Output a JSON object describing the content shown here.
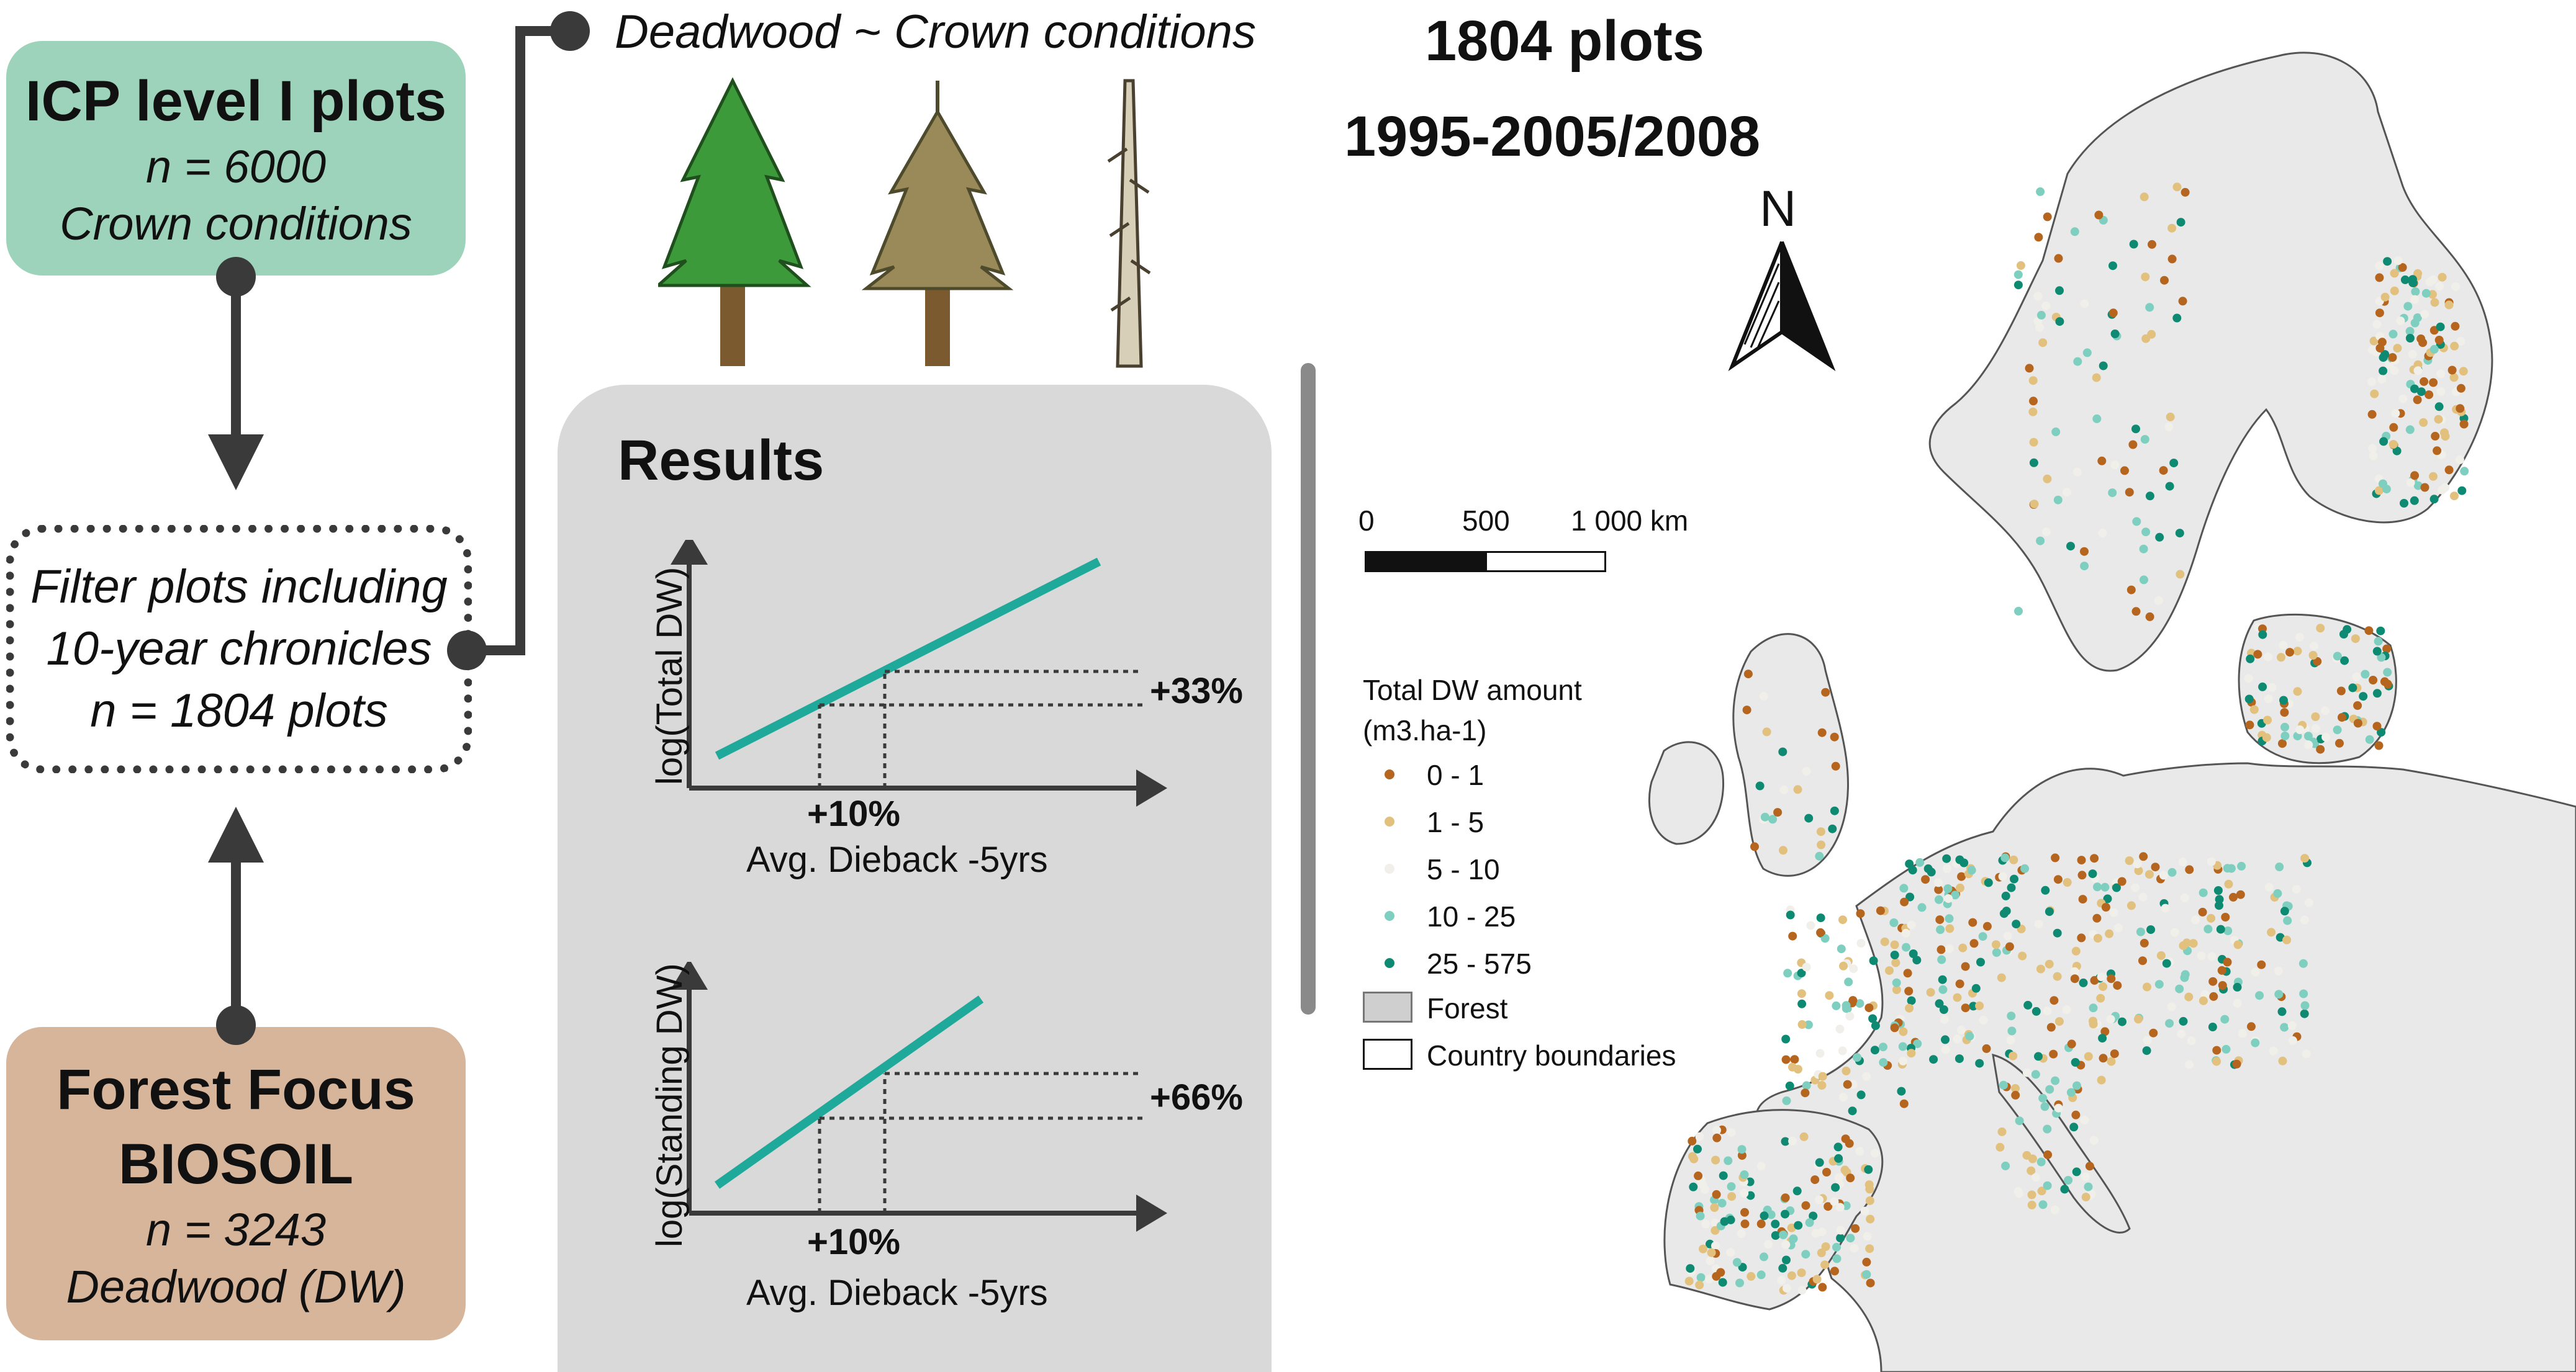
{
  "flow": {
    "icp": {
      "title": "ICP level I plots",
      "n": "n = 6000",
      "subject": "Crown conditions"
    },
    "filter": {
      "line1": "Filter plots including",
      "line2": "10-year chronicles",
      "n": "n = 1804 plots"
    },
    "forest": {
      "title1": "Forest Focus",
      "title2": "BIOSOIL",
      "n": "n = 3243",
      "subject": "Deadwood (DW)"
    }
  },
  "model": {
    "title": "Deadwood ~ Crown conditions"
  },
  "trees": [
    "healthy-tree-icon",
    "declining-tree-icon",
    "dead-tree-icon"
  ],
  "results": {
    "title": "Results",
    "panels": [
      {
        "ylabel": "log(Total DW)",
        "xlabel": "Avg. Dieback -5yrs",
        "x_change": "+10%",
        "y_change": "+33%"
      },
      {
        "ylabel": "log(Standing DW)",
        "xlabel": "Avg. Dieback -5yrs",
        "x_change": "+10%",
        "y_change": "+66%"
      }
    ]
  },
  "map": {
    "plots": "1804 plots",
    "period": "1995-2005/2008",
    "north": "N",
    "scale": {
      "labels": [
        "0",
        "500",
        "1 000 km"
      ]
    },
    "legend": {
      "title_line1": "Total DW amount",
      "title_line2": "(m3.ha-1)",
      "classes": [
        {
          "label": "0 - 1",
          "color": "#b5651d"
        },
        {
          "label": "1 - 5",
          "color": "#e2c07e"
        },
        {
          "label": "5 - 10",
          "color": "#f1efe9"
        },
        {
          "label": "10 - 25",
          "color": "#7ecfbf"
        },
        {
          "label": "25 - 575",
          "color": "#0e8a72"
        }
      ],
      "forest_label": "Forest",
      "boundaries_label": "Country boundaries"
    }
  },
  "colors": {
    "icp_box": "#9dd3bb",
    "forest_box": "#d7b59a",
    "panel": "#d9d9d9",
    "trend_line": "#1fa99a",
    "arrow": "#3a3a3a"
  }
}
